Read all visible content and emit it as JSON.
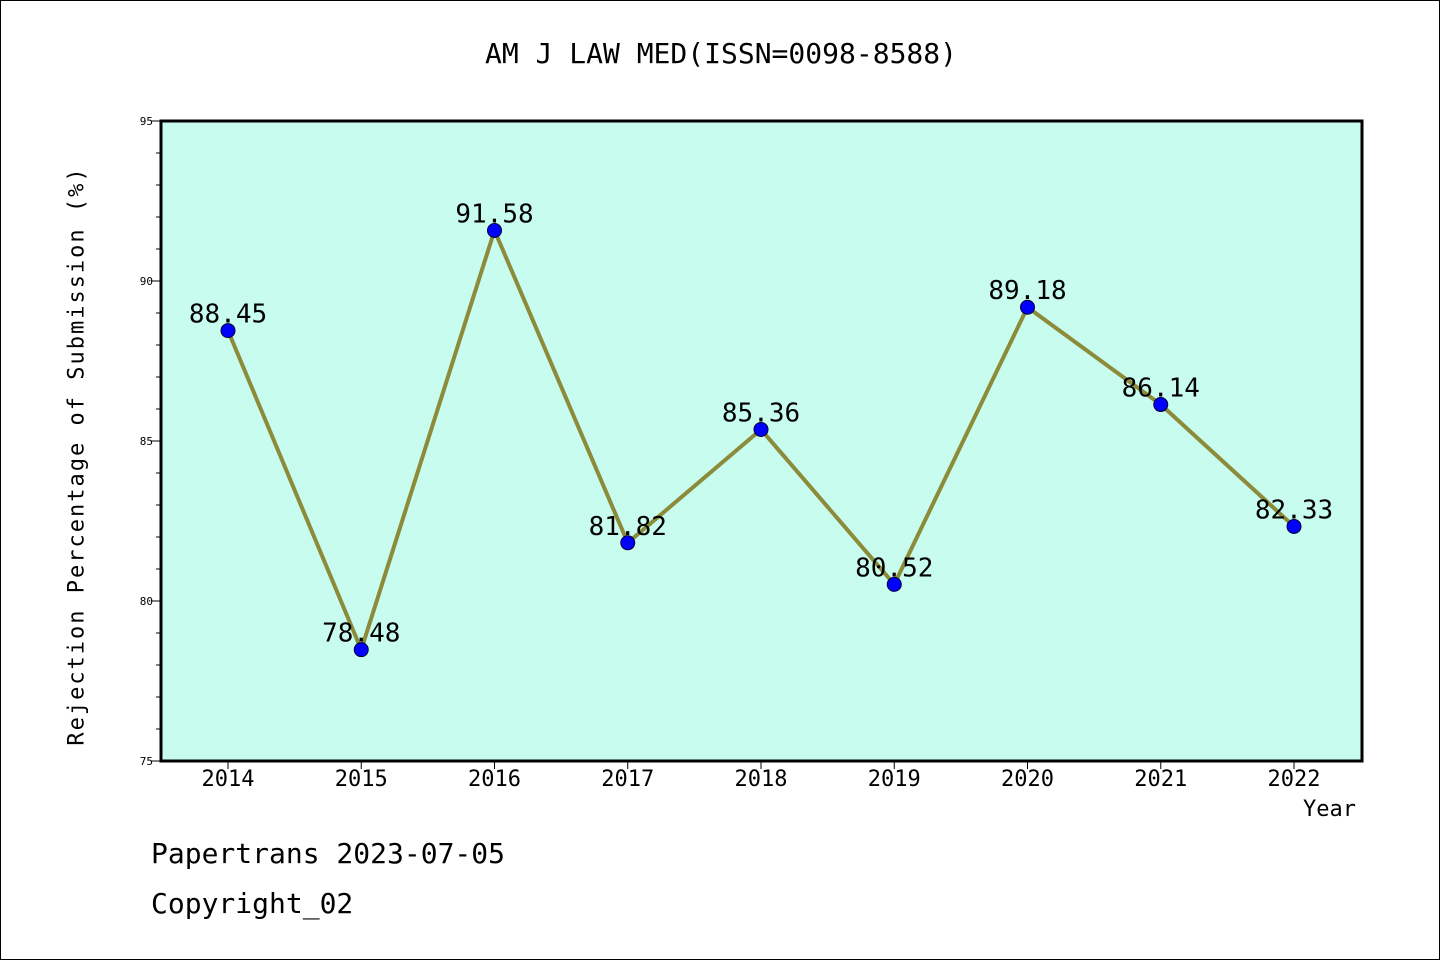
{
  "chart_data": {
    "type": "line",
    "title": "AM J LAW MED(ISSN=0098-8588)",
    "xlabel": "Year",
    "ylabel": "Rejection Percentage of Submission (%)",
    "categories": [
      "2014",
      "2015",
      "2016",
      "2017",
      "2018",
      "2019",
      "2020",
      "2021",
      "2022"
    ],
    "values": [
      88.45,
      78.48,
      91.58,
      81.82,
      85.36,
      80.52,
      89.18,
      86.14,
      82.33
    ],
    "data_labels": [
      "88.45",
      "78.48",
      "91.58",
      "81.82",
      "85.36",
      "80.52",
      "89.18",
      "86.14",
      "82.33"
    ],
    "ylim": [
      75,
      95
    ],
    "yticks": [
      75,
      80,
      85,
      90,
      95
    ],
    "grid": false,
    "colors": {
      "plot_background": "#c8fcee",
      "line": "#8b8b3a",
      "marker": "#0000ff"
    }
  },
  "footer": {
    "line1": "Papertrans 2023-07-05",
    "line2": "Copyright_02"
  }
}
